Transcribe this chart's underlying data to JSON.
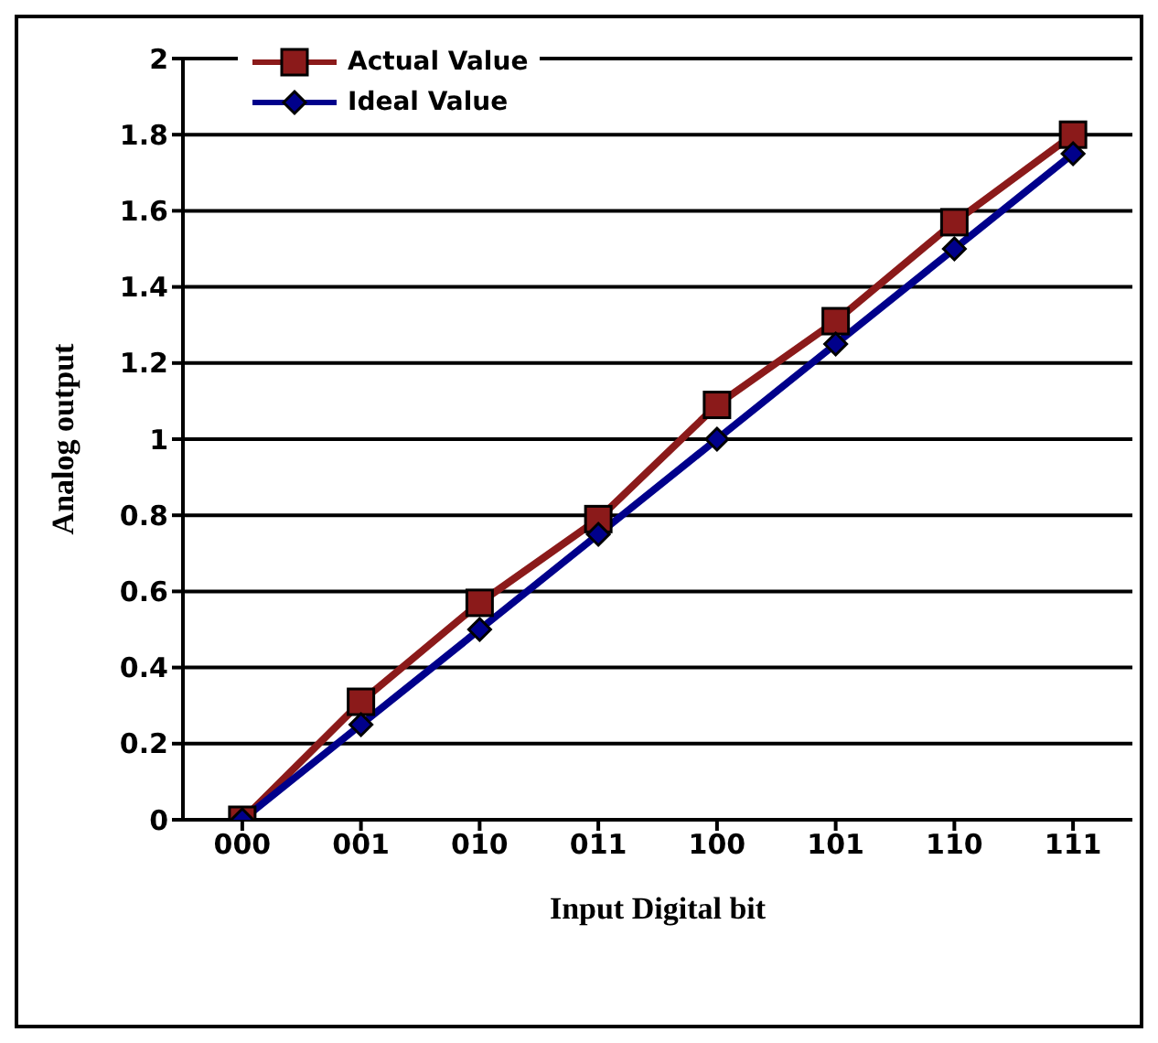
{
  "chart_data": {
    "type": "line",
    "xlabel": "Input Digital bit",
    "ylabel": "Analog output",
    "categories": [
      "000",
      "001",
      "010",
      "011",
      "100",
      "101",
      "110",
      "111"
    ],
    "series": [
      {
        "name": "Actual Value",
        "color": "#8b1a1a",
        "marker": "square",
        "values": [
          0,
          0.31,
          0.57,
          0.79,
          1.09,
          1.31,
          1.57,
          1.8
        ]
      },
      {
        "name": "Ideal Value",
        "color": "#00008b",
        "marker": "diamond",
        "values": [
          0,
          0.25,
          0.5,
          0.75,
          1,
          1.25,
          1.5,
          1.75
        ]
      }
    ],
    "ylim": [
      0,
      2
    ],
    "yticks": [
      0,
      0.2,
      0.4,
      0.6,
      0.8,
      1,
      1.2,
      1.4,
      1.6,
      1.8,
      2
    ],
    "grid": "y",
    "legend": "top left",
    "line_style": "solid"
  }
}
